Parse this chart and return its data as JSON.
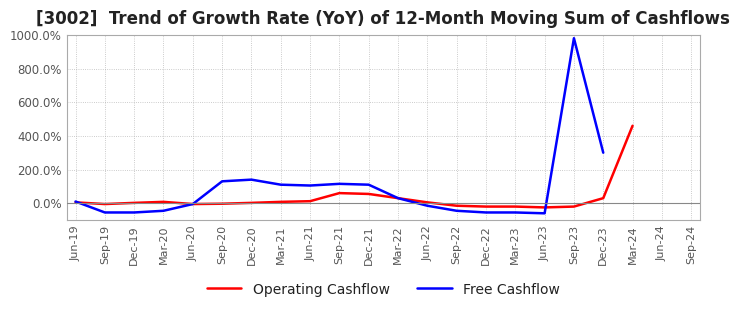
{
  "title": "[3002]  Trend of Growth Rate (YoY) of 12-Month Moving Sum of Cashflows",
  "title_fontsize": 12,
  "background_color": "#ffffff",
  "grid_color": "#aaaaaa",
  "xlabels": [
    "Jun-19",
    "Sep-19",
    "Dec-19",
    "Mar-20",
    "Jun-20",
    "Sep-20",
    "Dec-20",
    "Mar-21",
    "Jun-21",
    "Sep-21",
    "Dec-21",
    "Mar-22",
    "Jun-22",
    "Sep-22",
    "Dec-22",
    "Mar-23",
    "Jun-23",
    "Sep-23",
    "Dec-23",
    "Mar-24",
    "Jun-24",
    "Sep-24"
  ],
  "operating_cashflow": [
    5,
    -5,
    2,
    8,
    -5,
    -3,
    2,
    8,
    12,
    60,
    55,
    30,
    5,
    -15,
    -20,
    -20,
    -25,
    -20,
    30,
    460,
    null,
    null
  ],
  "free_cashflow": [
    10,
    -55,
    -55,
    -45,
    -5,
    130,
    140,
    110,
    105,
    115,
    110,
    30,
    -15,
    -45,
    -55,
    -55,
    -60,
    980,
    300,
    null,
    null,
    null
  ],
  "operating_color": "#ff0000",
  "free_color": "#0000ff",
  "ylim": [
    -100,
    1000
  ],
  "yticks": [
    0,
    200,
    400,
    600,
    800,
    1000
  ],
  "line_width": 1.8
}
